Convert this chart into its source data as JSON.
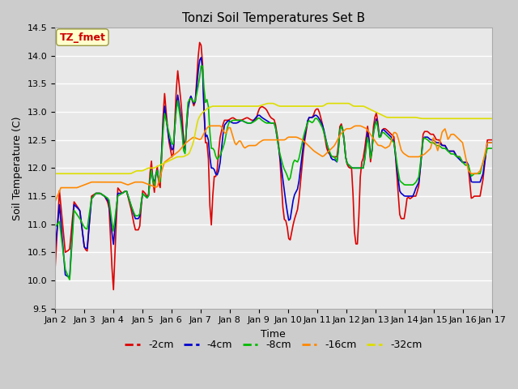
{
  "title": "Tonzi Soil Temperatures Set B",
  "xlabel": "Time",
  "ylabel": "Soil Temperature (C)",
  "ylim": [
    9.5,
    14.5
  ],
  "xlim": [
    0,
    15
  ],
  "xtick_labels": [
    "Jan 2",
    "Jan 3",
    "Jan 4",
    "Jan 5",
    "Jan 6",
    "Jan 7",
    "Jan 8",
    "Jan 9",
    "Jan 10",
    "Jan 11",
    "Jan 12",
    "Jan 13",
    "Jan 14",
    "Jan 15",
    "Jan 16",
    "Jan 17"
  ],
  "ytick_vals": [
    9.5,
    10.0,
    10.5,
    11.0,
    11.5,
    12.0,
    12.5,
    13.0,
    13.5,
    14.0,
    14.5
  ],
  "colors": {
    "-2cm": "#dd0000",
    "-4cm": "#0000cc",
    "-8cm": "#00bb00",
    "-16cm": "#ff8800",
    "-32cm": "#dddd00"
  },
  "legend_label": "TZ_fmet",
  "legend_box_facecolor": "#ffffcc",
  "legend_box_edgecolor": "#999944",
  "legend_text_color": "#cc0000",
  "fig_facecolor": "#cccccc",
  "ax_facecolor": "#e8e8e8",
  "grid_color": "#ffffff",
  "title_fontsize": 11,
  "axis_label_fontsize": 9,
  "tick_fontsize": 8,
  "linewidth": 1.2
}
